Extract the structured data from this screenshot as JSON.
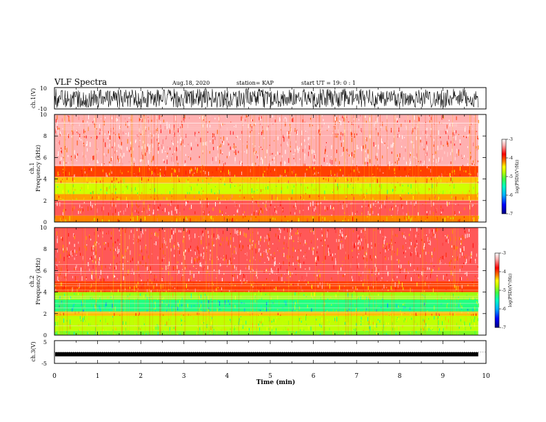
{
  "header": {
    "title": "VLF Spectra",
    "date": "Aug.18, 2020",
    "station": "station= KAP",
    "start": "start  UT =   19: 0  : 1"
  },
  "chart_data": [
    {
      "type": "line",
      "panel": "waveform-ch1",
      "ylabel": "ch.1(V)",
      "ylim": [
        -10,
        10
      ],
      "yticks": [
        "10",
        "-10"
      ],
      "x_range_min": [
        0,
        9.82
      ],
      "description_values": {
        "amplitude_range": [
          -9,
          9
        ]
      }
    },
    {
      "type": "heatmap",
      "panel": "spectrogram-ch1",
      "title": "ch.1",
      "ylabel": "Frequency (kHz)",
      "ylim": [
        0,
        10
      ],
      "yticks": [
        "0",
        "2",
        "4",
        "6",
        "8",
        "10"
      ],
      "x_range_min": [
        0,
        9.82
      ],
      "colorbar": {
        "label": "log(PSD)(V²/Hz)",
        "range": [
          -7,
          -3
        ],
        "ticks": [
          "-3",
          "-4",
          "-5",
          "-6",
          "-7"
        ]
      },
      "bands_log_psd": [
        {
          "f_khz": [
            0.0,
            0.6
          ],
          "value": -4.2
        },
        {
          "f_khz": [
            0.6,
            2.0
          ],
          "value": -3.6
        },
        {
          "f_khz": [
            2.0,
            2.6
          ],
          "value": -4.3
        },
        {
          "f_khz": [
            2.6,
            3.6
          ],
          "value": -4.9
        },
        {
          "f_khz": [
            3.6,
            4.2
          ],
          "value": -4.4
        },
        {
          "f_khz": [
            4.2,
            5.2
          ],
          "value": -4.0
        },
        {
          "f_khz": [
            5.2,
            10.0
          ],
          "value": -3.4
        }
      ]
    },
    {
      "type": "heatmap",
      "panel": "spectrogram-ch2",
      "title": "ch.2",
      "ylabel": "Frequency (kHz)",
      "ylim": [
        0,
        10
      ],
      "yticks": [
        "0",
        "2",
        "4",
        "6",
        "8",
        "10"
      ],
      "x_range_min": [
        0,
        9.82
      ],
      "colorbar": {
        "label": "log(PSD)(V²/Hz)",
        "range": [
          -7,
          -3
        ],
        "ticks": [
          "-3",
          "-4",
          "-5",
          "-6",
          "-7"
        ]
      },
      "bands_log_psd": [
        {
          "f_khz": [
            0.0,
            0.4
          ],
          "value": -5.2
        },
        {
          "f_khz": [
            0.4,
            1.8
          ],
          "value": -5.0
        },
        {
          "f_khz": [
            1.8,
            2.2
          ],
          "value": -4.4
        },
        {
          "f_khz": [
            2.2,
            3.3
          ],
          "value": -5.6
        },
        {
          "f_khz": [
            3.3,
            4.0
          ],
          "value": -5.1
        },
        {
          "f_khz": [
            4.0,
            5.0
          ],
          "value": -4.0
        },
        {
          "f_khz": [
            5.0,
            10.0
          ],
          "value": -3.6
        }
      ]
    },
    {
      "type": "line",
      "panel": "waveform-ch3",
      "ylabel": "ch.3(V)",
      "ylim": [
        -5,
        5
      ],
      "yticks": [
        "5",
        "0",
        "-5"
      ],
      "x_range_min": [
        0,
        9.82
      ],
      "description_values": {
        "level": -1.0,
        "amplitude": 0.3
      }
    }
  ],
  "xaxis": {
    "label": "Time (min)",
    "range": [
      0,
      10
    ],
    "ticks": [
      "0",
      "1",
      "2",
      "3",
      "4",
      "5",
      "6",
      "7",
      "8",
      "9",
      "10"
    ]
  },
  "colors": {
    "background": "#ffffff",
    "trace": "#000000",
    "colormap": [
      "#000080",
      "#0000ff",
      "#00b0ff",
      "#00ffc0",
      "#40ff40",
      "#c0ff00",
      "#ffff00",
      "#ff8000",
      "#ff0000",
      "#ffb0b0",
      "#ffffff"
    ]
  }
}
